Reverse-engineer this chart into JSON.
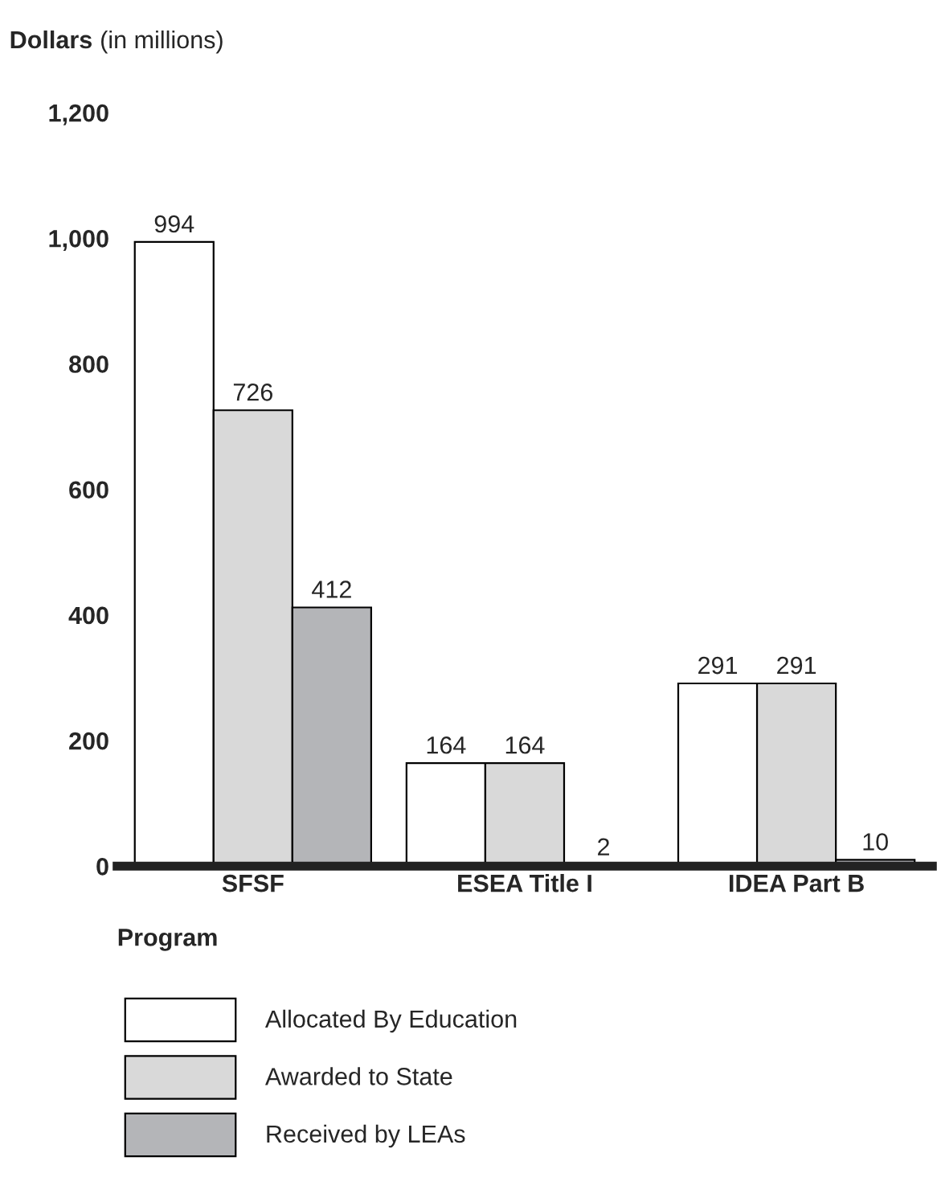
{
  "chart_data": {
    "type": "bar",
    "ylabel": "Dollars (in millions)",
    "xlabel": "Program",
    "categories": [
      "SFSF",
      "ESEA Title I",
      "IDEA Part B"
    ],
    "series": [
      {
        "name": "Allocated By Education",
        "color": "#ffffff",
        "values": [
          994,
          164,
          291
        ]
      },
      {
        "name": "Awarded to State",
        "color": "#d9d9d9",
        "values": [
          726,
          164,
          291
        ]
      },
      {
        "name": "Received by LEAs",
        "color": "#b4b5b8",
        "values": [
          412,
          2,
          10
        ]
      }
    ],
    "ylim": [
      0,
      1200
    ],
    "yticks": [
      0,
      200,
      400,
      600,
      800,
      {
        "value": 1000,
        "label": "1,000"
      },
      {
        "value": 1200,
        "label": "1,200"
      }
    ],
    "data_labels": true,
    "grid": false,
    "legend": "bottom"
  }
}
